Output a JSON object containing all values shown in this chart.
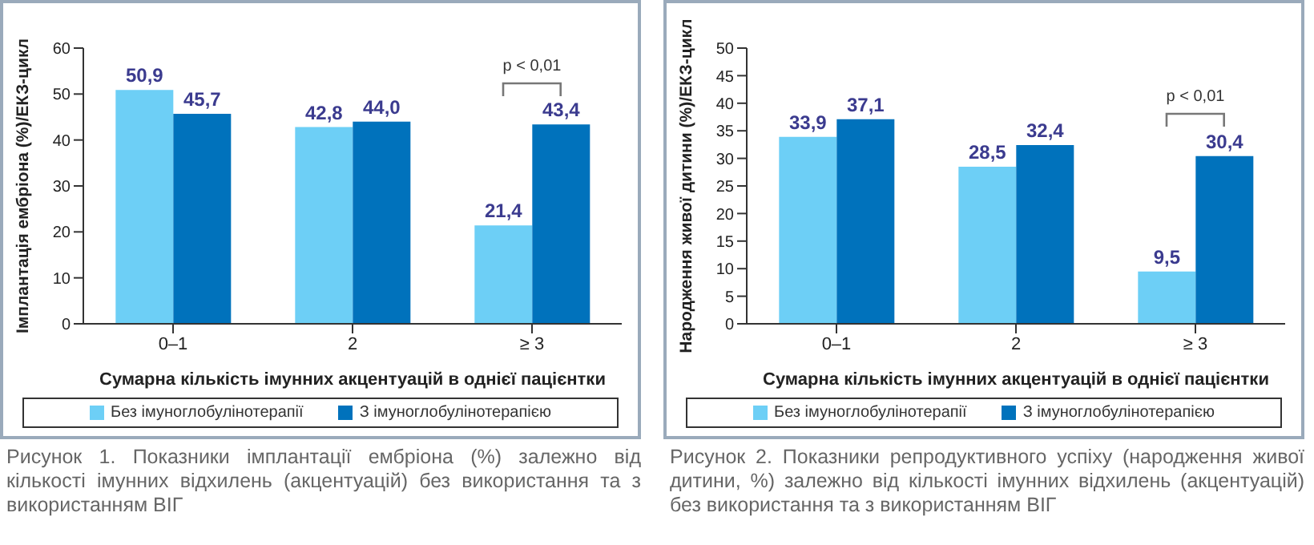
{
  "chart_data": [
    {
      "type": "bar",
      "categories": [
        "0–1",
        "2",
        "≥ 3"
      ],
      "xlabel": "Сумарна кількість імунних акцентуацій в однієї пацієнтки",
      "ylabel": "Імплантація ембріона (%)/ЕКЗ-цикл",
      "ylim": [
        0,
        60
      ],
      "yticks": [
        0,
        10,
        20,
        30,
        40,
        50,
        60
      ],
      "grid": false,
      "legend": "bottom",
      "series": [
        {
          "name": "Без імуноглобулінотерапії",
          "color": "#6dcff6",
          "values": [
            50.9,
            42.8,
            21.4
          ],
          "value_labels": [
            "50,9",
            "42,8",
            "21,4"
          ]
        },
        {
          "name": "З імуноглобулінотерапією",
          "color": "#0072bc",
          "values": [
            45.7,
            44.0,
            43.4
          ],
          "value_labels": [
            "45,7",
            "44,0",
            "43,4"
          ]
        }
      ],
      "annotations": [
        "p < 0,01",
        "Рисунок 1. Показники імплантації ембріона (%) залежно від кількості імунних відхилень (акцентуацій) без використання та з використанням ВІГ"
      ]
    },
    {
      "type": "bar",
      "categories": [
        "0–1",
        "2",
        "≥ 3"
      ],
      "xlabel": "Сумарна кількість імунних акцентуацій в однієї пацієнтки",
      "ylabel": "Народження живої дитини (%)/ЕКЗ-цикл",
      "ylim": [
        0,
        50
      ],
      "yticks": [
        0,
        5,
        10,
        15,
        20,
        25,
        30,
        35,
        40,
        45,
        50
      ],
      "grid": false,
      "legend": "bottom",
      "series": [
        {
          "name": "Без імуноглобулінотерапії",
          "color": "#6dcff6",
          "values": [
            33.9,
            28.5,
            9.5
          ],
          "value_labels": [
            "33,9",
            "28,5",
            "9,5"
          ]
        },
        {
          "name": "З імуноглобулінотерапією",
          "color": "#0072bc",
          "values": [
            37.1,
            32.4,
            30.4
          ],
          "value_labels": [
            "37,1",
            "32,4",
            "30,4"
          ]
        }
      ],
      "annotations": [
        "p < 0,01",
        "Рисунок 2. Показники репродуктивного успіху (народження живої дитини, %) залежно від кількості імунних відхилень (акцентуацій) без використання та з використанням ВІГ"
      ]
    }
  ]
}
